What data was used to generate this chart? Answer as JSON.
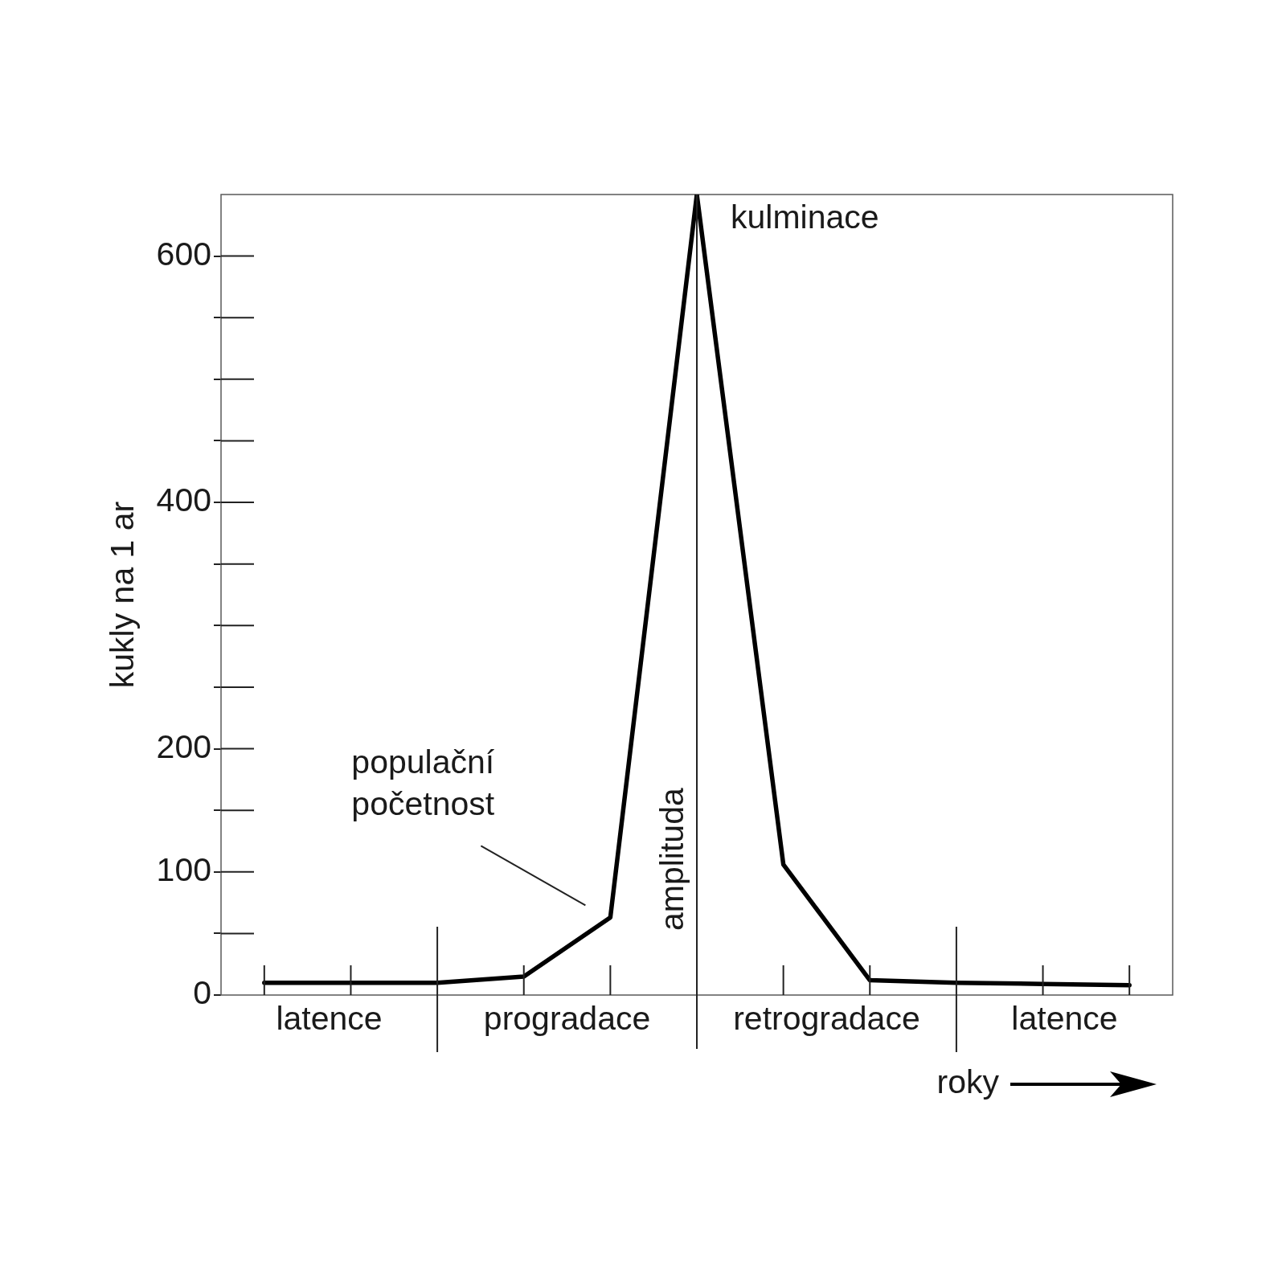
{
  "chart_data": {
    "type": "line",
    "ylabel": "kukly na 1 ar",
    "xlabel": "roky",
    "categories": [
      null,
      null,
      null,
      null,
      null,
      null,
      null,
      null,
      null,
      null,
      null
    ],
    "series": [
      {
        "name": "populační početnost",
        "color": "#000000",
        "values": [
          10,
          10,
          10,
          15,
          63,
          650,
          106,
          12,
          10,
          9,
          8
        ]
      }
    ],
    "ylim": [
      0,
      650
    ],
    "yticks": [
      0,
      {
        "value": 50,
        "label": null
      },
      100,
      {
        "value": 150,
        "label": null
      },
      200,
      {
        "value": 250,
        "label": null
      },
      {
        "value": 300,
        "label": null
      },
      {
        "value": 350,
        "label": null
      },
      400,
      {
        "value": 450,
        "label": null
      },
      {
        "value": 500,
        "label": null
      },
      {
        "value": 550,
        "label": null
      },
      600
    ],
    "annotations": [
      "latence",
      "progradace",
      "retrogradace",
      "latence",
      "kulminace",
      "amplituda"
    ],
    "marker": "none",
    "line_style": "solid",
    "legend": false,
    "grid": false
  }
}
